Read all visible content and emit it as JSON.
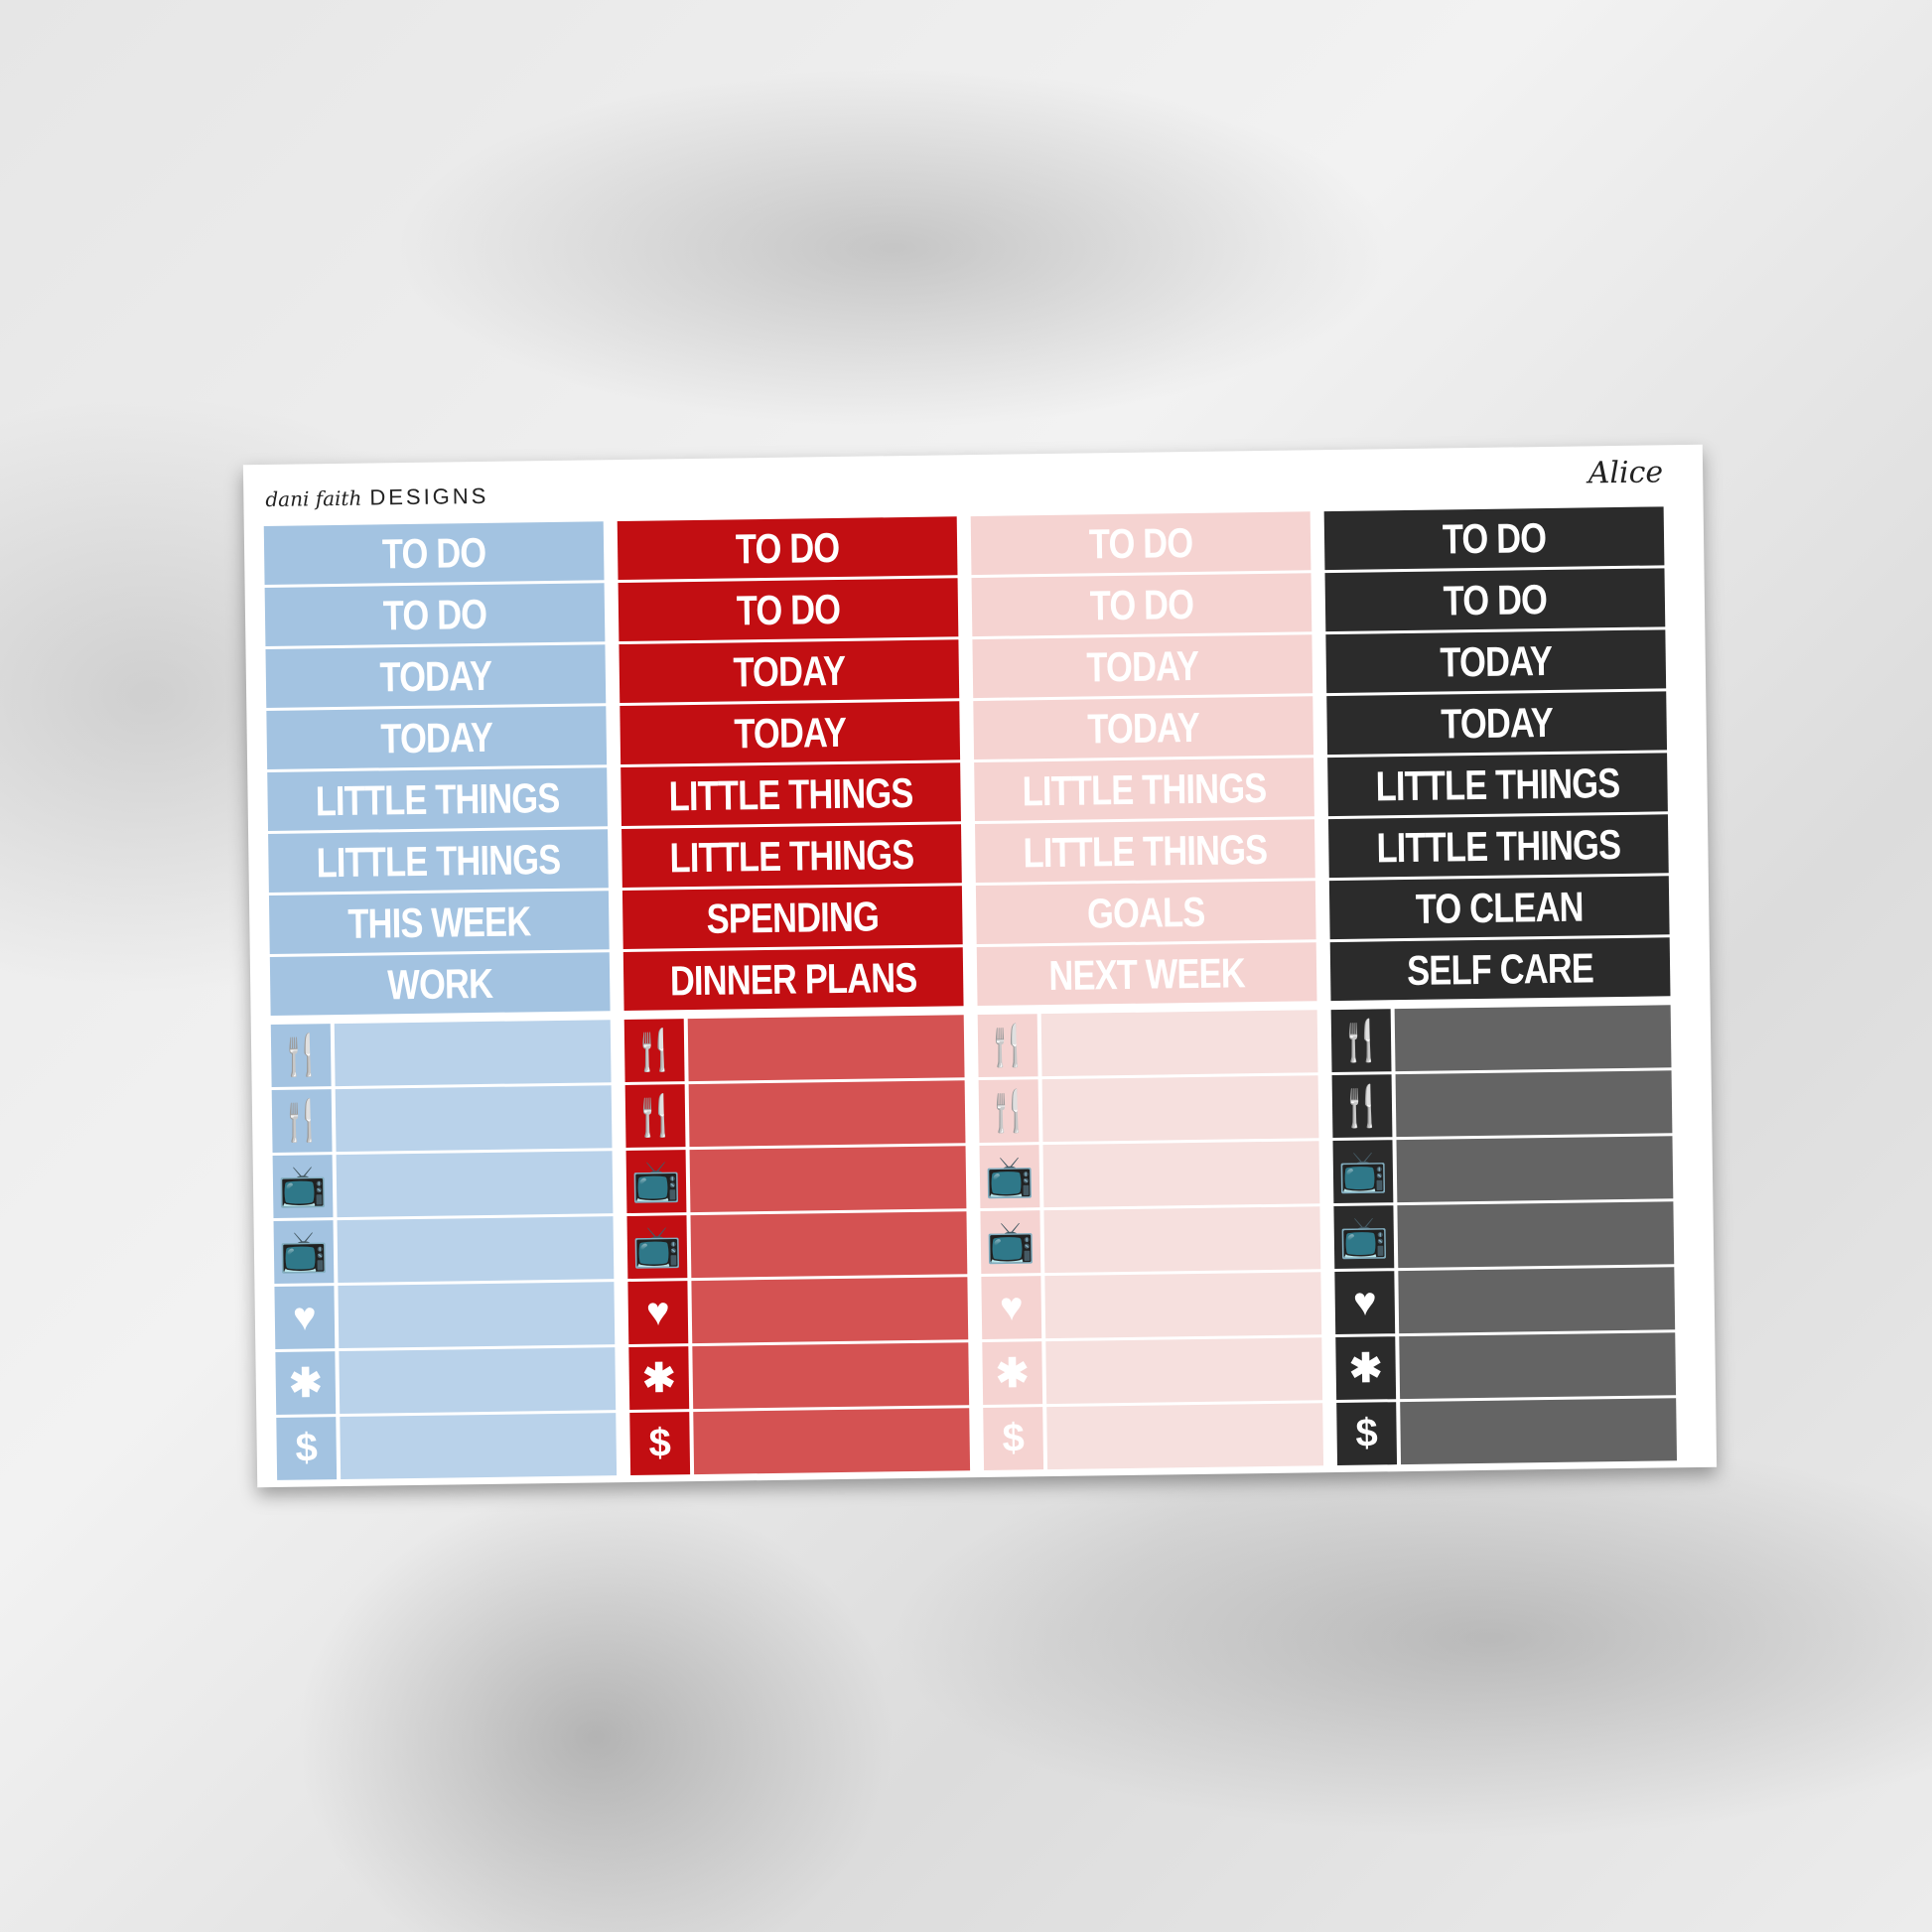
{
  "brand": {
    "script": "dani faith",
    "word": "DESIGNS"
  },
  "kit_name": "Alice",
  "columns": [
    {
      "color": "#a3c3e1",
      "light": "#b9d2ea",
      "labels": [
        "TO DO",
        "TO DO",
        "TODAY",
        "TODAY",
        "LITTLE THINGS",
        "LITTLE THINGS",
        "THIS WEEK",
        "WORK"
      ]
    },
    {
      "color": "#c20e12",
      "light": "#d45252",
      "labels": [
        "TO DO",
        "TO DO",
        "TODAY",
        "TODAY",
        "LITTLE THINGS",
        "LITTLE THINGS",
        "SPENDING",
        "DINNER PLANS"
      ]
    },
    {
      "color": "#f5d3d1",
      "light": "#f6e0de",
      "labels": [
        "TO DO",
        "TO DO",
        "TODAY",
        "TODAY",
        "LITTLE THINGS",
        "LITTLE THINGS",
        "GOALS",
        "NEXT WEEK"
      ]
    },
    {
      "color": "#2b2b2b",
      "light": "#646464",
      "labels": [
        "TO DO",
        "TO DO",
        "TODAY",
        "TODAY",
        "LITTLE THINGS",
        "LITTLE THINGS",
        "TO CLEAN",
        "SELF CARE"
      ]
    }
  ],
  "icons": [
    {
      "name": "fork-knife-icon",
      "glyph": "🍴"
    },
    {
      "name": "fork-knife-icon",
      "glyph": "🍴"
    },
    {
      "name": "tv-icon",
      "glyph": "📺"
    },
    {
      "name": "tv-icon",
      "glyph": "📺"
    },
    {
      "name": "heart-icon",
      "glyph": "♥"
    },
    {
      "name": "asterisk-icon",
      "glyph": "✱"
    },
    {
      "name": "dollar-icon",
      "glyph": "$"
    }
  ]
}
